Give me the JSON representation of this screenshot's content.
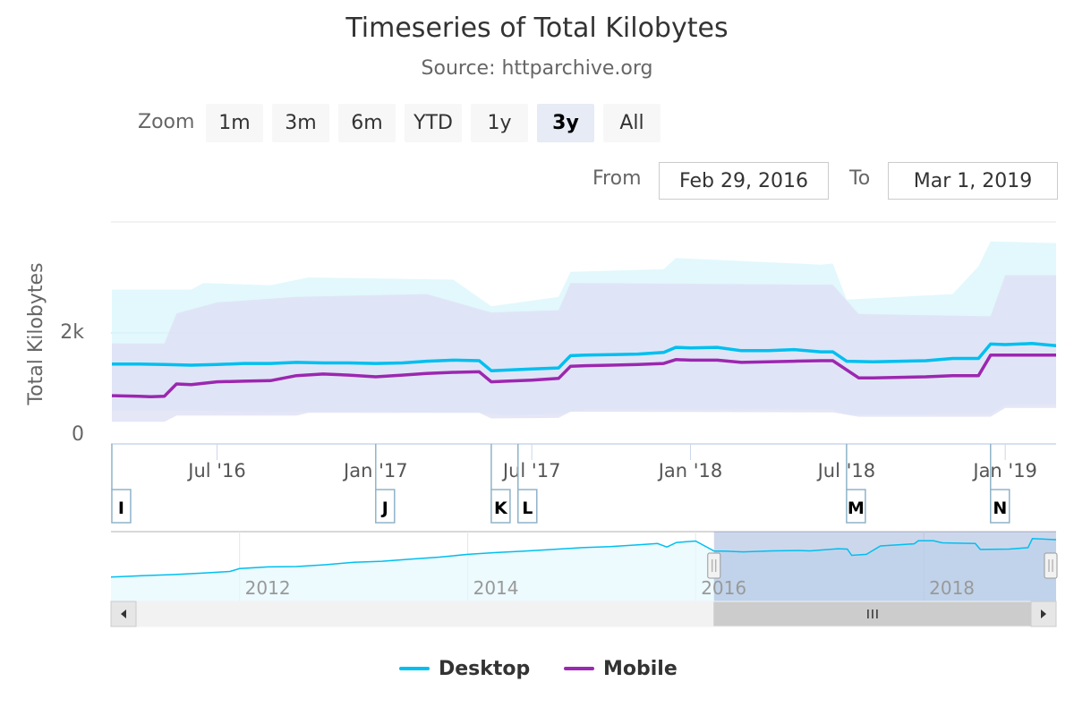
{
  "chart_data": {
    "type": "line",
    "title": "Timeseries of Total Kilobytes",
    "subtitle": "Source: httparchive.org",
    "ylabel": "Total Kilobytes",
    "ylim": [
      0,
      4000
    ],
    "y_ticks": [
      {
        "value": 0,
        "label": "0"
      },
      {
        "value": 2000,
        "label": "2k"
      }
    ],
    "x_ticks": [
      {
        "date": "2016-07-01",
        "label": "Jul '16"
      },
      {
        "date": "2017-01-01",
        "label": "Jan '17"
      },
      {
        "date": "2017-07-01",
        "label": "Jul '17"
      },
      {
        "date": "2018-01-01",
        "label": "Jan '18"
      },
      {
        "date": "2018-07-01",
        "label": "Jul '18"
      },
      {
        "date": "2019-01-01",
        "label": "Jan '19"
      }
    ],
    "xlim": [
      "2016-02-29",
      "2019-03-01"
    ],
    "series": [
      {
        "name": "Desktop",
        "color": "#00bfef",
        "band_color": "#d8f6fb",
        "points": [
          [
            "2016-03-01",
            1440
          ],
          [
            "2016-04-01",
            1440
          ],
          [
            "2016-05-01",
            1430
          ],
          [
            "2016-06-01",
            1420
          ],
          [
            "2016-07-01",
            1430
          ],
          [
            "2016-08-01",
            1450
          ],
          [
            "2016-09-01",
            1450
          ],
          [
            "2016-10-01",
            1470
          ],
          [
            "2016-11-01",
            1460
          ],
          [
            "2016-12-01",
            1460
          ],
          [
            "2017-01-01",
            1450
          ],
          [
            "2017-02-01",
            1460
          ],
          [
            "2017-03-01",
            1490
          ],
          [
            "2017-04-01",
            1510
          ],
          [
            "2017-05-01",
            1500
          ],
          [
            "2017-05-15",
            1320
          ],
          [
            "2017-06-01",
            1330
          ],
          [
            "2017-07-01",
            1350
          ],
          [
            "2017-08-01",
            1370
          ],
          [
            "2017-08-15",
            1590
          ],
          [
            "2017-09-01",
            1600
          ],
          [
            "2017-10-01",
            1610
          ],
          [
            "2017-11-01",
            1620
          ],
          [
            "2017-12-01",
            1650
          ],
          [
            "2017-12-15",
            1740
          ],
          [
            "2018-01-01",
            1730
          ],
          [
            "2018-02-01",
            1740
          ],
          [
            "2018-03-01",
            1680
          ],
          [
            "2018-04-01",
            1680
          ],
          [
            "2018-05-01",
            1700
          ],
          [
            "2018-06-01",
            1660
          ],
          [
            "2018-06-15",
            1660
          ],
          [
            "2018-07-01",
            1490
          ],
          [
            "2018-08-01",
            1480
          ],
          [
            "2018-09-01",
            1490
          ],
          [
            "2018-10-01",
            1500
          ],
          [
            "2018-11-01",
            1540
          ],
          [
            "2018-12-01",
            1540
          ],
          [
            "2018-12-15",
            1800
          ],
          [
            "2019-01-01",
            1790
          ],
          [
            "2019-02-01",
            1810
          ],
          [
            "2019-03-01",
            1770
          ]
        ],
        "band_low": [
          [
            "2016-03-01",
            600
          ],
          [
            "2016-06-01",
            600
          ],
          [
            "2016-09-01",
            570
          ],
          [
            "2016-10-15",
            580
          ],
          [
            "2017-05-01",
            560
          ],
          [
            "2017-06-01",
            520
          ],
          [
            "2017-08-01",
            540
          ],
          [
            "2017-09-01",
            620
          ],
          [
            "2018-06-15",
            620
          ],
          [
            "2018-07-01",
            530
          ],
          [
            "2018-12-15",
            540
          ],
          [
            "2019-01-01",
            700
          ],
          [
            "2019-03-01",
            720
          ]
        ],
        "band_high": [
          [
            "2016-03-01",
            2780
          ],
          [
            "2016-06-01",
            2780
          ],
          [
            "2016-06-15",
            2900
          ],
          [
            "2016-09-01",
            2860
          ],
          [
            "2016-10-15",
            3000
          ],
          [
            "2017-04-01",
            2960
          ],
          [
            "2017-05-15",
            2480
          ],
          [
            "2017-08-01",
            2650
          ],
          [
            "2017-08-15",
            3100
          ],
          [
            "2017-12-01",
            3150
          ],
          [
            "2017-12-15",
            3350
          ],
          [
            "2018-06-01",
            3230
          ],
          [
            "2018-06-15",
            3250
          ],
          [
            "2018-07-01",
            2600
          ],
          [
            "2018-11-01",
            2700
          ],
          [
            "2018-12-01",
            3200
          ],
          [
            "2018-12-15",
            3650
          ],
          [
            "2019-03-01",
            3620
          ]
        ]
      },
      {
        "name": "Mobile",
        "color": "#9c27b0",
        "band_color": "#dfe0f4",
        "points": [
          [
            "2016-03-01",
            870
          ],
          [
            "2016-04-01",
            860
          ],
          [
            "2016-04-15",
            850
          ],
          [
            "2016-05-01",
            860
          ],
          [
            "2016-05-15",
            1080
          ],
          [
            "2016-06-01",
            1070
          ],
          [
            "2016-07-01",
            1120
          ],
          [
            "2016-08-01",
            1130
          ],
          [
            "2016-09-01",
            1140
          ],
          [
            "2016-10-01",
            1230
          ],
          [
            "2016-11-01",
            1260
          ],
          [
            "2016-12-01",
            1240
          ],
          [
            "2017-01-01",
            1210
          ],
          [
            "2017-02-01",
            1240
          ],
          [
            "2017-03-01",
            1270
          ],
          [
            "2017-04-01",
            1290
          ],
          [
            "2017-05-01",
            1300
          ],
          [
            "2017-05-15",
            1120
          ],
          [
            "2017-06-01",
            1130
          ],
          [
            "2017-07-01",
            1150
          ],
          [
            "2017-08-01",
            1180
          ],
          [
            "2017-08-15",
            1400
          ],
          [
            "2017-09-01",
            1410
          ],
          [
            "2017-10-01",
            1420
          ],
          [
            "2017-11-01",
            1430
          ],
          [
            "2017-12-01",
            1450
          ],
          [
            "2017-12-15",
            1520
          ],
          [
            "2018-01-01",
            1510
          ],
          [
            "2018-02-01",
            1510
          ],
          [
            "2018-03-01",
            1470
          ],
          [
            "2018-04-01",
            1480
          ],
          [
            "2018-05-01",
            1490
          ],
          [
            "2018-06-01",
            1500
          ],
          [
            "2018-06-15",
            1500
          ],
          [
            "2018-07-15",
            1190
          ],
          [
            "2018-08-01",
            1190
          ],
          [
            "2018-09-01",
            1200
          ],
          [
            "2018-10-01",
            1210
          ],
          [
            "2018-11-01",
            1230
          ],
          [
            "2018-12-01",
            1230
          ],
          [
            "2018-12-15",
            1600
          ],
          [
            "2019-03-01",
            1600
          ]
        ],
        "band_low": [
          [
            "2016-03-01",
            400
          ],
          [
            "2016-05-01",
            400
          ],
          [
            "2016-05-15",
            510
          ],
          [
            "2016-10-01",
            510
          ],
          [
            "2016-10-15",
            560
          ],
          [
            "2017-05-01",
            560
          ],
          [
            "2017-05-15",
            460
          ],
          [
            "2017-08-01",
            470
          ],
          [
            "2017-08-15",
            580
          ],
          [
            "2018-06-15",
            570
          ],
          [
            "2018-07-15",
            490
          ],
          [
            "2018-12-15",
            490
          ],
          [
            "2019-01-01",
            650
          ],
          [
            "2019-03-01",
            650
          ]
        ],
        "band_high": [
          [
            "2016-03-01",
            1810
          ],
          [
            "2016-05-01",
            1810
          ],
          [
            "2016-05-15",
            2350
          ],
          [
            "2016-07-01",
            2550
          ],
          [
            "2016-10-01",
            2650
          ],
          [
            "2017-03-01",
            2700
          ],
          [
            "2017-05-15",
            2370
          ],
          [
            "2017-08-01",
            2410
          ],
          [
            "2017-08-15",
            2900
          ],
          [
            "2018-06-15",
            2870
          ],
          [
            "2018-07-15",
            2340
          ],
          [
            "2018-12-15",
            2300
          ],
          [
            "2019-01-01",
            3040
          ],
          [
            "2019-03-01",
            3040
          ]
        ]
      }
    ],
    "flags": [
      {
        "date": "2016-03-01",
        "label": "I"
      },
      {
        "date": "2017-01-01",
        "label": "J"
      },
      {
        "date": "2017-05-15",
        "label": "K"
      },
      {
        "date": "2017-06-15",
        "label": "L"
      },
      {
        "date": "2018-07-01",
        "label": "M"
      },
      {
        "date": "2018-12-15",
        "label": "N"
      }
    ],
    "navigator": {
      "xlim": [
        "2010-11-15",
        "2019-03-01"
      ],
      "x_ticks": [
        {
          "date": "2012-01-01",
          "label": "2012"
        },
        {
          "date": "2014-01-01",
          "label": "2014"
        },
        {
          "date": "2016-01-01",
          "label": "2016"
        },
        {
          "date": "2018-01-01",
          "label": "2018"
        }
      ],
      "selection": [
        "2016-02-29",
        "2019-03-01"
      ],
      "series_color": "#00bfef",
      "points": [
        [
          "2010-11-15",
          700
        ],
        [
          "2011-03-01",
          740
        ],
        [
          "2011-06-01",
          770
        ],
        [
          "2011-09-01",
          810
        ],
        [
          "2011-12-01",
          860
        ],
        [
          "2012-01-01",
          940
        ],
        [
          "2012-04-01",
          990
        ],
        [
          "2012-07-01",
          1000
        ],
        [
          "2012-10-01",
          1050
        ],
        [
          "2013-01-01",
          1120
        ],
        [
          "2013-04-01",
          1150
        ],
        [
          "2013-07-01",
          1210
        ],
        [
          "2013-10-01",
          1270
        ],
        [
          "2014-01-01",
          1350
        ],
        [
          "2014-04-01",
          1400
        ],
        [
          "2014-07-01",
          1440
        ],
        [
          "2014-10-01",
          1490
        ],
        [
          "2015-01-01",
          1540
        ],
        [
          "2015-04-01",
          1570
        ],
        [
          "2015-07-01",
          1620
        ],
        [
          "2015-09-01",
          1660
        ],
        [
          "2015-10-01",
          1560
        ],
        [
          "2015-11-01",
          1690
        ],
        [
          "2016-01-01",
          1730
        ],
        [
          "2016-03-01",
          1440
        ],
        [
          "2016-04-01",
          1440
        ],
        [
          "2016-06-01",
          1420
        ],
        [
          "2016-09-01",
          1450
        ],
        [
          "2016-12-01",
          1460
        ],
        [
          "2017-01-01",
          1450
        ],
        [
          "2017-04-01",
          1510
        ],
        [
          "2017-05-01",
          1500
        ],
        [
          "2017-05-15",
          1320
        ],
        [
          "2017-07-01",
          1350
        ],
        [
          "2017-08-15",
          1590
        ],
        [
          "2017-12-01",
          1650
        ],
        [
          "2017-12-15",
          1740
        ],
        [
          "2018-02-01",
          1740
        ],
        [
          "2018-03-01",
          1680
        ],
        [
          "2018-06-15",
          1660
        ],
        [
          "2018-07-01",
          1490
        ],
        [
          "2018-10-01",
          1500
        ],
        [
          "2018-12-01",
          1540
        ],
        [
          "2018-12-15",
          1800
        ],
        [
          "2019-03-01",
          1770
        ]
      ]
    },
    "legend_position": "bottom-center",
    "grid": true
  },
  "toolbar": {
    "zoom_label": "Zoom",
    "buttons": [
      "1m",
      "3m",
      "6m",
      "YTD",
      "1y",
      "3y",
      "All"
    ],
    "selected": "3y"
  },
  "range_selector": {
    "from_label": "From",
    "from_value": "Feb 29, 2016",
    "to_label": "To",
    "to_value": "Mar 1, 2019"
  },
  "legend": {
    "items": [
      {
        "label": "Desktop",
        "color": "#00bfef"
      },
      {
        "label": "Mobile",
        "color": "#9c27b0"
      }
    ]
  },
  "scrollbar": {
    "left_arrow_icon": "arrow-left-icon",
    "right_arrow_icon": "arrow-right-icon",
    "thumb_grip_icon": "grip-icon"
  }
}
